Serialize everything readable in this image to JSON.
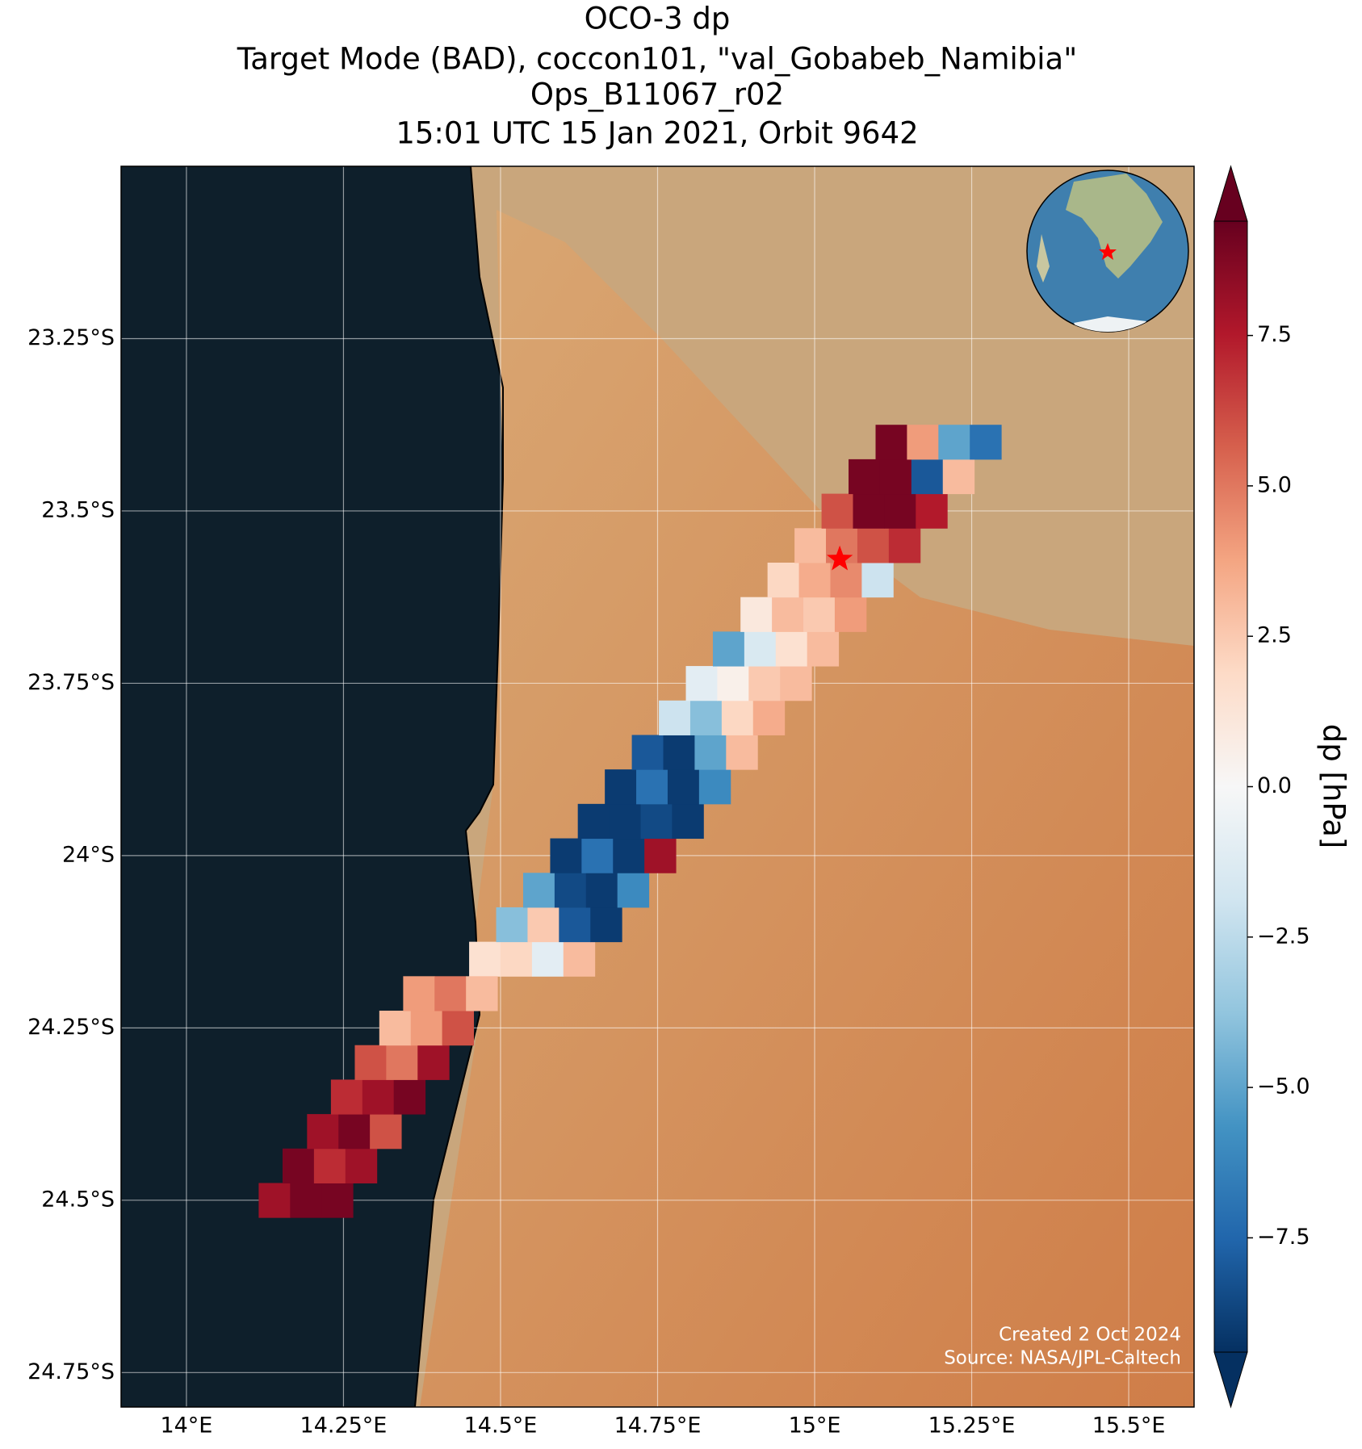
{
  "chart_data": {
    "type": "map",
    "title": [
      "OCO-3 dp",
      "Target Mode (BAD), coccon101, \"val_Gobabeb_Namibia\"",
      "Ops_B11067_r02",
      "15:01 UTC 15 Jan 2021, Orbit 9642"
    ],
    "colorbar_label": "dp [hPa]",
    "annotations": [
      "Created 2 Oct 2024",
      "Source: NASA/JPL-Caltech"
    ],
    "xlim": [
      13.896,
      15.604
    ],
    "ylim": [
      -24.8,
      -23.0
    ],
    "xticks": [
      {
        "value": 14,
        "label": "14°E"
      },
      {
        "value": 14.25,
        "label": "14.25°E"
      },
      {
        "value": 14.5,
        "label": "14.5°E"
      },
      {
        "value": 14.75,
        "label": "14.75°E"
      },
      {
        "value": 15,
        "label": "15°E"
      },
      {
        "value": 15.25,
        "label": "15.25°E"
      },
      {
        "value": 15.5,
        "label": "15.5°E"
      }
    ],
    "yticks": [
      {
        "value": -23.25,
        "label": "23.25°S"
      },
      {
        "value": -23.5,
        "label": "23.5°S"
      },
      {
        "value": -23.75,
        "label": "23.75°S"
      },
      {
        "value": -24.0,
        "label": "24°S"
      },
      {
        "value": -24.25,
        "label": "24.25°S"
      },
      {
        "value": -24.5,
        "label": "24.5°S"
      },
      {
        "value": -24.75,
        "label": "24.75°S"
      }
    ],
    "grid": true,
    "clim": [
      -9.4,
      9.4
    ],
    "cticks": [
      {
        "value": -7.5,
        "label": "−7.5"
      },
      {
        "value": -5.0,
        "label": "−5.0"
      },
      {
        "value": -2.5,
        "label": "−2.5"
      },
      {
        "value": 0.0,
        "label": "0.0"
      },
      2.5,
      {
        "value": 5.0,
        "label": "5.0"
      },
      7.5
    ],
    "colormap": [
      "#053061",
      "#2166ac",
      "#4393c3",
      "#92c5de",
      "#d1e5f0",
      "#f7f7f7",
      "#fddbc7",
      "#f4a582",
      "#d6604d",
      "#b2182b",
      "#67001f"
    ],
    "marker": {
      "lon": 15.04,
      "lat": -23.57,
      "color": "#ff0000"
    },
    "x": [
      14.475,
      14.525,
      14.575,
      14.625,
      14.518,
      14.568,
      14.618,
      14.668,
      14.561,
      14.611,
      14.661,
      14.711,
      14.604,
      14.654,
      14.704,
      14.754,
      14.648,
      14.698,
      14.748,
      14.798,
      14.691,
      14.741,
      14.791,
      14.841,
      14.734,
      14.784,
      14.834,
      14.884,
      14.777,
      14.827,
      14.877,
      14.927,
      14.82,
      14.87,
      14.92,
      14.97,
      14.863,
      14.913,
      14.963,
      15.013,
      14.907,
      14.957,
      15.007,
      15.057,
      14.95,
      15.0,
      15.05,
      15.1,
      14.993,
      15.043,
      15.093,
      15.143,
      15.036,
      15.086,
      15.136,
      15.186,
      15.079,
      15.129,
      15.179,
      15.229,
      15.122,
      15.172,
      15.222,
      15.272,
      14.14,
      14.19,
      14.24,
      14.178,
      14.228,
      14.278,
      14.217,
      14.267,
      14.317,
      14.255,
      14.305,
      14.355,
      14.293,
      14.343,
      14.393,
      14.332,
      14.382,
      14.432,
      14.37,
      14.42,
      14.47
    ],
    "y": [
      -24.15,
      -24.15,
      -24.15,
      -24.15,
      -24.1,
      -24.1,
      -24.1,
      -24.1,
      -24.05,
      -24.05,
      -24.05,
      -24.05,
      -24.0,
      -24.0,
      -24.0,
      -24.0,
      -23.95,
      -23.95,
      -23.95,
      -23.95,
      -23.9,
      -23.9,
      -23.9,
      -23.9,
      -23.85,
      -23.85,
      -23.85,
      -23.85,
      -23.8,
      -23.8,
      -23.8,
      -23.8,
      -23.75,
      -23.75,
      -23.75,
      -23.75,
      -23.7,
      -23.7,
      -23.7,
      -23.7,
      -23.65,
      -23.65,
      -23.65,
      -23.65,
      -23.6,
      -23.6,
      -23.6,
      -23.6,
      -23.55,
      -23.55,
      -23.55,
      -23.55,
      -23.5,
      -23.5,
      -23.5,
      -23.5,
      -23.45,
      -23.45,
      -23.45,
      -23.45,
      -23.4,
      -23.4,
      -23.4,
      -23.4,
      -24.5,
      -24.5,
      -24.5,
      -24.45,
      -24.45,
      -24.45,
      -24.4,
      -24.4,
      -24.4,
      -24.35,
      -24.35,
      -24.35,
      -24.3,
      -24.3,
      -24.3,
      -24.25,
      -24.25,
      -24.25,
      -24.2,
      -24.2,
      -24.2
    ],
    "values": [
      1.5,
      2.0,
      -1.0,
      3.0,
      -4.0,
      2.5,
      -8.0,
      -9.0,
      -5.0,
      -8.5,
      -9.0,
      -6.0,
      -9.0,
      -7.0,
      -9.0,
      8.0,
      -9.0,
      -9.0,
      -8.5,
      -9.0,
      -9.0,
      -7.0,
      -9.0,
      -6.0,
      -8.0,
      -9.0,
      -5.0,
      3.0,
      -2.0,
      -4.0,
      2.0,
      3.5,
      -1.0,
      0.5,
      2.5,
      3.0,
      -5.0,
      -1.5,
      1.5,
      3.0,
      1.0,
      3.0,
      2.5,
      4.0,
      2.0,
      3.5,
      4.5,
      -2.0,
      3.0,
      5.0,
      6.0,
      7.0,
      6.0,
      9.0,
      9.0,
      7.5,
      9.0,
      9.0,
      -8.0,
      3.0,
      9.0,
      4.0,
      -5.0,
      -7.0,
      8,
      9,
      9,
      9,
      7,
      8,
      8,
      9,
      6,
      7,
      8,
      9,
      6,
      5,
      8,
      3,
      4,
      6,
      4,
      5,
      3
    ]
  }
}
